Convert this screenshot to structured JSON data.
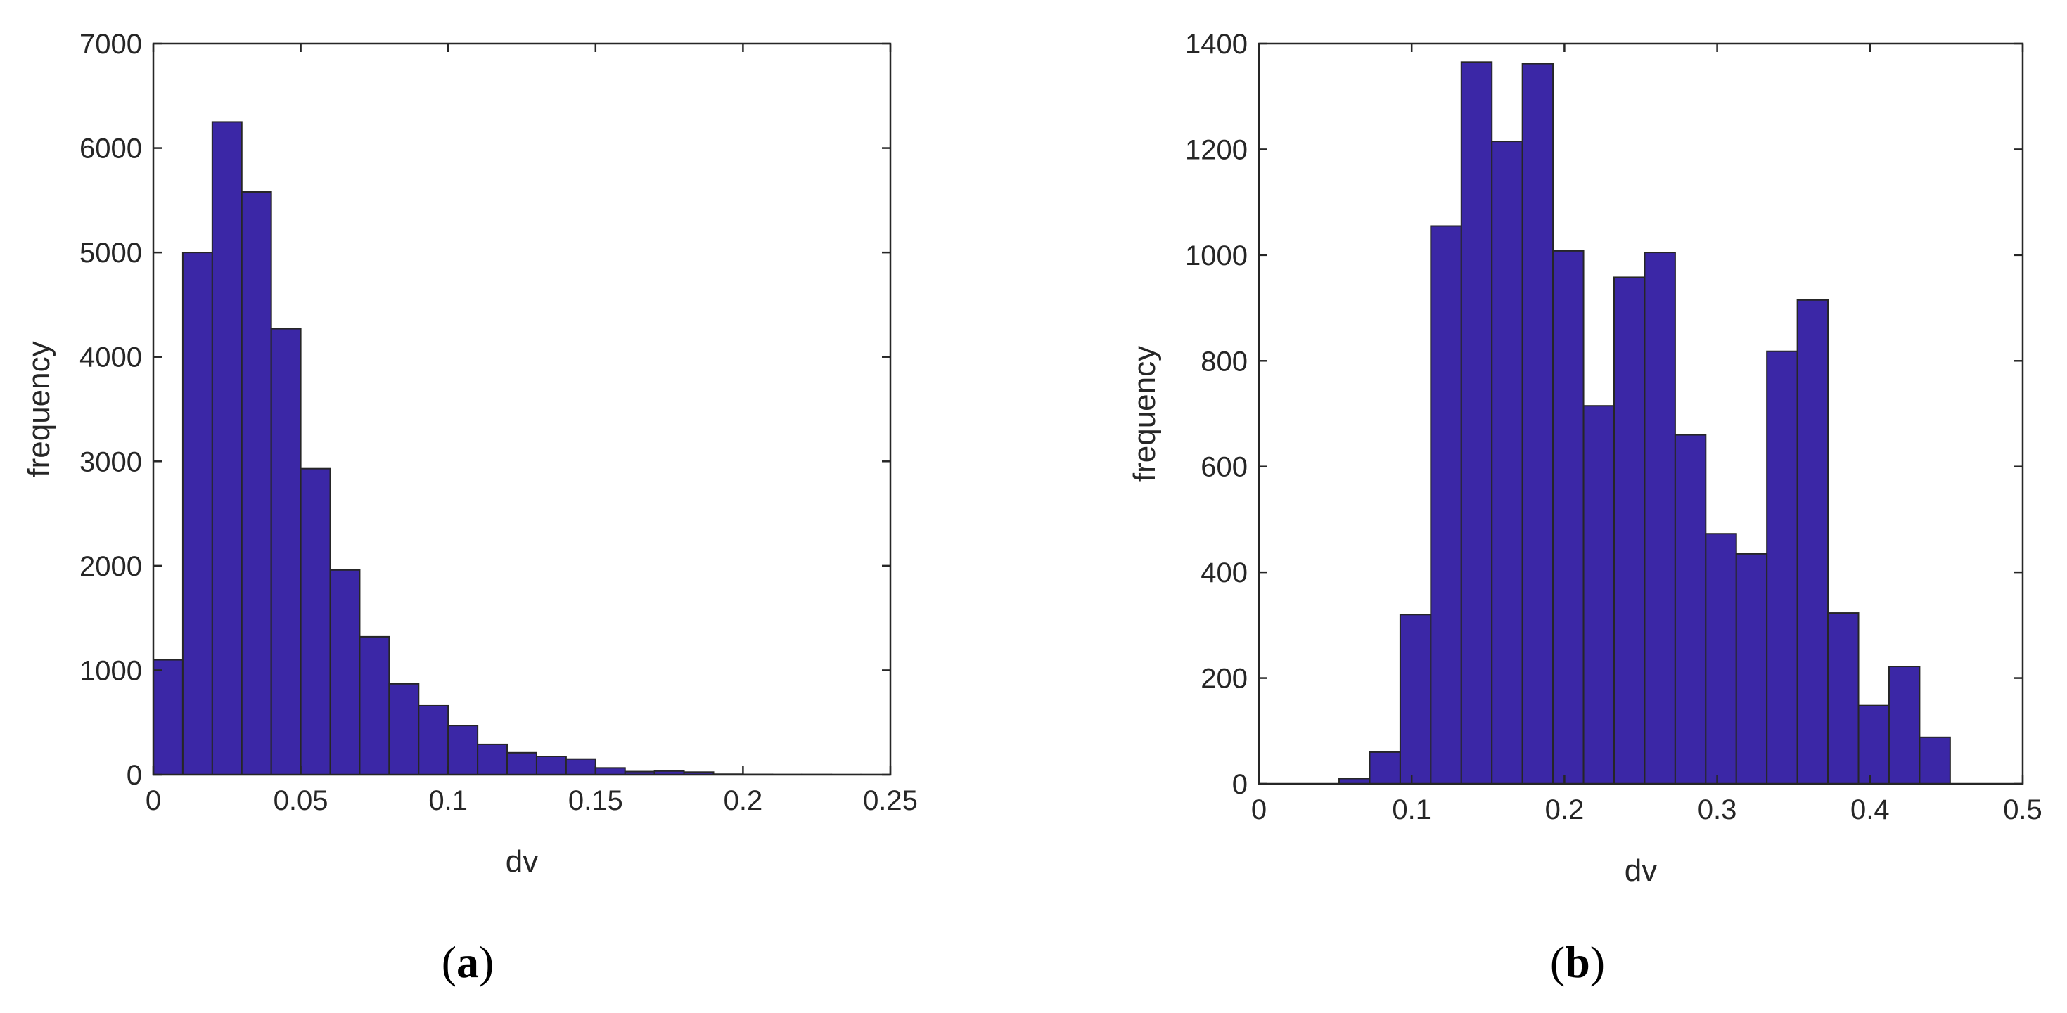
{
  "colors": {
    "bar_fill": "#3b27a6",
    "bar_edge": "#262626",
    "axes": "#262626"
  },
  "chart_data": [
    {
      "type": "bar",
      "panel_label": {
        "open": "(",
        "letter": "a",
        "close": ")"
      },
      "title": "",
      "xlabel": "dv",
      "ylabel": "frequency",
      "xlim": [
        0,
        0.25
      ],
      "ylim": [
        0,
        7000
      ],
      "xticks": [
        0,
        0.05,
        0.1,
        0.15,
        0.2,
        0.25
      ],
      "xtick_labels": [
        "0",
        "0.05",
        "0.1",
        "0.15",
        "0.2",
        "0.25"
      ],
      "yticks": [
        0,
        1000,
        2000,
        3000,
        4000,
        5000,
        6000,
        7000
      ],
      "ytick_labels": [
        "0",
        "1000",
        "2000",
        "3000",
        "4000",
        "5000",
        "6000",
        "7000"
      ],
      "bin_edges": [
        0,
        0.01,
        0.02,
        0.03,
        0.04,
        0.05,
        0.06,
        0.07,
        0.08,
        0.09,
        0.1,
        0.11,
        0.12,
        0.13,
        0.14,
        0.15,
        0.16,
        0.17,
        0.18,
        0.19,
        0.2,
        0.21,
        0.22,
        0.23,
        0.24,
        0.25
      ],
      "values": [
        1100,
        5000,
        6250,
        5580,
        4270,
        2930,
        1960,
        1320,
        870,
        660,
        470,
        290,
        210,
        175,
        150,
        65,
        30,
        35,
        25,
        5,
        3,
        2,
        2,
        1,
        1
      ],
      "grid": false,
      "legend": "none"
    },
    {
      "type": "bar",
      "panel_label": {
        "open": "(",
        "letter": "b",
        "close": ")"
      },
      "title": "",
      "xlabel": "dv",
      "ylabel": "frequency",
      "xlim": [
        0,
        0.5
      ],
      "ylim": [
        0,
        1400
      ],
      "xticks": [
        0,
        0.1,
        0.2,
        0.3,
        0.4,
        0.5
      ],
      "xtick_labels": [
        "0",
        "0.1",
        "0.2",
        "0.3",
        "0.4",
        "0.5"
      ],
      "yticks": [
        0,
        200,
        400,
        600,
        800,
        1000,
        1200,
        1400
      ],
      "ytick_labels": [
        "0",
        "200",
        "400",
        "600",
        "800",
        "1000",
        "1200",
        "1400"
      ],
      "bin_edges": [
        0.0525,
        0.0725,
        0.0925,
        0.1125,
        0.1325,
        0.1525,
        0.1725,
        0.1925,
        0.2125,
        0.2325,
        0.2525,
        0.2725,
        0.2925,
        0.3125,
        0.3325,
        0.3525,
        0.3725,
        0.3925,
        0.4125,
        0.4325,
        0.4525
      ],
      "values": [
        10,
        60,
        320,
        1055,
        1365,
        1215,
        1362,
        1008,
        715,
        958,
        1005,
        660,
        473,
        435,
        818,
        915,
        323,
        148,
        222,
        88
      ],
      "grid": false,
      "legend": "none"
    }
  ]
}
